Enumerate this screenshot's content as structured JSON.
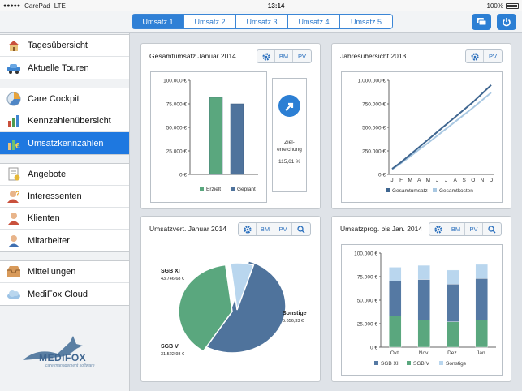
{
  "status": {
    "carrier": "CarePad",
    "network": "LTE",
    "time": "13:14",
    "battery": "100%"
  },
  "tabs": [
    "Umsatz 1",
    "Umsatz 2",
    "Umsatz 3",
    "Umsatz 4",
    "Umsatz 5"
  ],
  "sidebar": {
    "groups": [
      [
        {
          "label": "Tagesübersicht",
          "icon": "house-icon"
        },
        {
          "label": "Aktuelle Touren",
          "icon": "car-icon"
        }
      ],
      [
        {
          "label": "Care Cockpit",
          "icon": "gauge-icon"
        },
        {
          "label": "Kennzahlenübersicht",
          "icon": "bar-chart-icon"
        },
        {
          "label": "Umsatzkennzahlen",
          "icon": "money-chart-icon",
          "active": true
        }
      ],
      [
        {
          "label": "Angebote",
          "icon": "document-icon"
        },
        {
          "label": "Interessenten",
          "icon": "person-question-icon"
        },
        {
          "label": "Klienten",
          "icon": "person-icon"
        },
        {
          "label": "Mitarbeiter",
          "icon": "employee-icon"
        }
      ],
      [
        {
          "label": "Mitteilungen",
          "icon": "inbox-icon"
        },
        {
          "label": "MediFox Cloud",
          "icon": "cloud-icon"
        }
      ]
    ],
    "logo_text": "MEDIFOX",
    "logo_sub": "care management software"
  },
  "cards": {
    "c1": {
      "title": "Gesamtumsatz Januar 2014",
      "buttons": [
        "BM",
        "PV"
      ],
      "goal_label_1": "Ziel-",
      "goal_label_2": "erreichung",
      "goal_value": "115,61 %"
    },
    "c2": {
      "title": "Jahresübersicht 2013",
      "buttons": [
        "PV"
      ]
    },
    "c3": {
      "title": "Umsatzvert. Januar 2014",
      "buttons": [
        "BM",
        "PV"
      ],
      "labels": {
        "sgb11": "SGB XI",
        "sgb11_val": "43.746,68 €",
        "sgb5": "SGB V",
        "sgb5_val": "31.522,98 €",
        "sonst": "Sonstige",
        "sonst_val": "5.656,33 €"
      }
    },
    "c4": {
      "title": "Umsatzprog. bis Jan. 2014",
      "buttons": [
        "BM",
        "PV"
      ]
    }
  },
  "chart_data": [
    {
      "type": "bar",
      "title": "Gesamtumsatz Januar 2014",
      "categories": [
        "Erzielt",
        "Geplant"
      ],
      "values": [
        82000,
        75000
      ],
      "ylim": [
        0,
        100000
      ],
      "yticks": [
        "0 €",
        "25.000 €",
        "50.000 €",
        "75.000 €",
        "100.000 €"
      ],
      "legend": [
        "Erzielt",
        "Geplant"
      ],
      "colors": [
        "#5aa77e",
        "#4f739c"
      ]
    },
    {
      "type": "line",
      "title": "Jahresübersicht 2013",
      "x": [
        "J",
        "F",
        "M",
        "A",
        "M",
        "J",
        "J",
        "A",
        "S",
        "O",
        "N",
        "D"
      ],
      "series": [
        {
          "name": "Gesamtumsatz",
          "values": [
            60000,
            130000,
            210000,
            290000,
            370000,
            450000,
            530000,
            610000,
            690000,
            770000,
            860000,
            950000
          ],
          "color": "#3f6690"
        },
        {
          "name": "Gesamtkosten",
          "values": [
            55000,
            120000,
            190000,
            265000,
            335000,
            410000,
            485000,
            560000,
            635000,
            710000,
            790000,
            870000
          ],
          "color": "#a9c8e2"
        }
      ],
      "ylim": [
        0,
        1000000
      ],
      "yticks": [
        "0 €",
        "250.000 €",
        "500.000 €",
        "750.000 €",
        "1.000.000 €"
      ]
    },
    {
      "type": "pie",
      "title": "Umsatzvert. Januar 2014",
      "categories": [
        "SGB XI",
        "SGB V",
        "Sonstige"
      ],
      "values": [
        43746.68,
        31522.98,
        5656.33
      ],
      "colors": [
        "#4f739c",
        "#5aa77e",
        "#b9d6ee"
      ]
    },
    {
      "type": "bar",
      "title": "Umsatzprog. bis Jan. 2014",
      "categories": [
        "Okt.",
        "Nov.",
        "Dez.",
        "Jan."
      ],
      "series": [
        {
          "name": "SGB XI",
          "values": [
            37000,
            43000,
            40000,
            44000
          ],
          "color": "#5579a3"
        },
        {
          "name": "SGB V",
          "values": [
            33000,
            29000,
            27000,
            29000
          ],
          "color": "#5aa77e"
        },
        {
          "name": "Sonstige",
          "values": [
            15000,
            15000,
            15000,
            15000
          ],
          "color": "#b9d6ee"
        }
      ],
      "ylim": [
        0,
        100000
      ],
      "yticks": [
        "0 €",
        "25.000 €",
        "50.000 €",
        "75.000 €",
        "100.000 €"
      ]
    }
  ]
}
